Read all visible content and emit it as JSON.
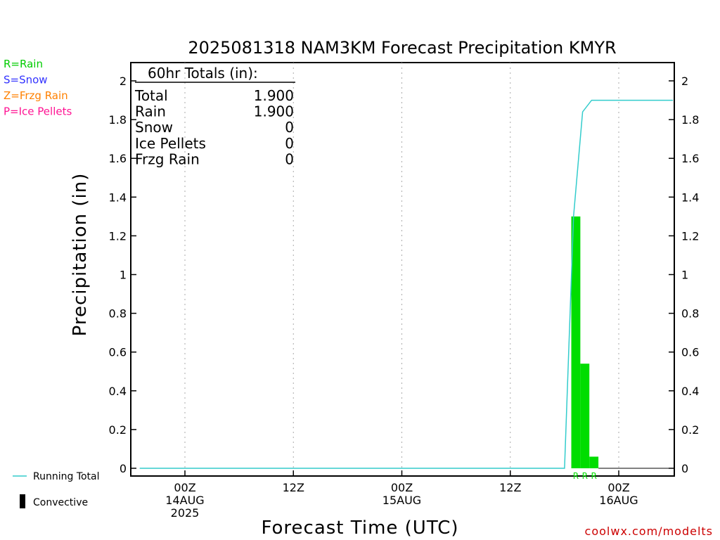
{
  "chart_data": {
    "type": "bar",
    "title": "2025081318 NAM3KM Forecast Precipitation KMYR",
    "xlabel": "Forecast Time (UTC)",
    "ylabel": "Precipitation (in)",
    "ylim": [
      0,
      2.1
    ],
    "y_ticks": [
      "0",
      "0.2",
      "0.4",
      "0.6",
      "0.8",
      "1",
      "1.2",
      "1.4",
      "1.6",
      "1.8",
      "2"
    ],
    "x_unit": "hours from 2025-08-13 18Z",
    "xlim": [
      0,
      60
    ],
    "x_ticks": [
      {
        "x": 6,
        "lines": [
          "00Z",
          "14AUG",
          "2025"
        ]
      },
      {
        "x": 18,
        "lines": [
          "12Z"
        ]
      },
      {
        "x": 30,
        "lines": [
          "00Z",
          "15AUG"
        ]
      },
      {
        "x": 42,
        "lines": [
          "12Z"
        ]
      },
      {
        "x": 54,
        "lines": [
          "00Z",
          "16AUG"
        ]
      }
    ],
    "grid": {
      "x": true,
      "y": false
    },
    "bars": [
      {
        "x0": 48.75,
        "x1": 49.75,
        "value": 1.3,
        "type_label": "R"
      },
      {
        "x0": 49.75,
        "x1": 50.75,
        "value": 0.54,
        "type_label": "R"
      },
      {
        "x0": 50.75,
        "x1": 51.75,
        "value": 0.06,
        "type_label": "R"
      }
    ],
    "running_total": {
      "name": "Running Total",
      "x": [
        1,
        48,
        49,
        50,
        51,
        60
      ],
      "y": [
        0,
        0,
        1.3,
        1.84,
        1.9,
        1.9
      ]
    },
    "totals_box": {
      "header": "60hr Totals (in):",
      "rows": [
        {
          "label": "Total",
          "value": "1.900"
        },
        {
          "label": "Rain",
          "value": "1.900"
        },
        {
          "label": "Snow",
          "value": "0"
        },
        {
          "label": "Ice Pellets",
          "value": "0"
        },
        {
          "label": "Frzg Rain",
          "value": "0"
        }
      ]
    },
    "type_legend": [
      {
        "text": "R=Rain",
        "color": "#00cc00"
      },
      {
        "text": "S=Snow",
        "color": "#3333ff"
      },
      {
        "text": "Z=Frzg Rain",
        "color": "#ff8000"
      },
      {
        "text": "P=Ice Pellets",
        "color": "#ff1493"
      }
    ],
    "line_legend": {
      "running_total": "Running Total",
      "convective": "Convective"
    },
    "colors": {
      "bars": "#00dd00",
      "running_total": "#33cccc",
      "grid": "#aaaaaa"
    },
    "credit": "coolwx.com/modelts",
    "credit_color": "#cc0000"
  }
}
